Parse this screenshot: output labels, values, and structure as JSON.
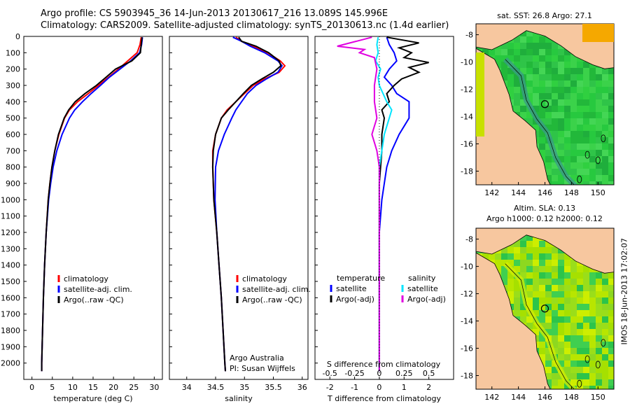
{
  "header": {
    "line1": "Argo profile: CS 5903945_36 14-Jun-2013 20130617_216 13.089S 145.996E",
    "line2": "Climatology: CARS2009. Satellite-adjusted climatology: synTS_20130613.nc (1.4d earlier)"
  },
  "side_label": "IMOS 18-Jun-2013 17:02:07",
  "colors": {
    "climatology": "#ff0000",
    "satellite": "#0000ff",
    "argo": "#000000",
    "sal_satellite": "#00e5ff",
    "sal_argo": "#e000e0",
    "land": "#f7c79f",
    "ocean_green": "#2ecc40"
  },
  "chart_data": [
    {
      "type": "line",
      "name": "temperature-profile",
      "xlabel": "temperature (deg C)",
      "ylabel": "",
      "xlim": [
        -2,
        32
      ],
      "ylim": [
        2100,
        0
      ],
      "xticks": [
        0,
        5,
        10,
        15,
        20,
        25,
        30
      ],
      "yticks": [
        0,
        100,
        200,
        300,
        400,
        500,
        600,
        700,
        800,
        900,
        1000,
        1100,
        1200,
        1300,
        1400,
        1500,
        1600,
        1700,
        1800,
        1900,
        2000
      ],
      "legend": [
        "climatology",
        "satellite-adj. clim.",
        "Argo(..raw -QC)"
      ],
      "series": [
        {
          "name": "climatology",
          "color": "#ff0000",
          "depth": [
            5,
            50,
            100,
            150,
            200,
            250,
            300,
            350,
            400,
            450,
            500,
            600,
            700,
            800,
            900,
            1000,
            1200,
            1400,
            1600,
            1800,
            2000,
            2050
          ],
          "values": [
            26.8,
            26.5,
            25.8,
            23.5,
            21.2,
            18.8,
            16.3,
            13.8,
            11.2,
            9.2,
            8.0,
            6.6,
            5.6,
            4.9,
            4.4,
            4.0,
            3.5,
            3.1,
            2.8,
            2.6,
            2.4,
            2.4
          ]
        },
        {
          "name": "satellite-adj. clim.",
          "color": "#0000ff",
          "depth": [
            5,
            50,
            100,
            150,
            200,
            250,
            300,
            350,
            400,
            450,
            500,
            600,
            700,
            800,
            900,
            1000,
            1200,
            1400,
            1600,
            1800,
            2000,
            2050
          ],
          "values": [
            27.1,
            26.9,
            26.4,
            24.2,
            21.6,
            19.0,
            16.8,
            14.5,
            12.4,
            10.5,
            9.2,
            7.4,
            6.1,
            5.2,
            4.6,
            4.1,
            3.5,
            3.1,
            2.8,
            2.6,
            2.4,
            2.4
          ]
        },
        {
          "name": "Argo(..raw -QC)",
          "color": "#000000",
          "depth": [
            5,
            50,
            100,
            150,
            200,
            250,
            300,
            350,
            400,
            450,
            500,
            600,
            700,
            800,
            900,
            1000,
            1200,
            1400,
            1600,
            1800,
            2000,
            2050
          ],
          "values": [
            27.0,
            26.8,
            26.6,
            24.5,
            20.5,
            18.2,
            15.8,
            13.0,
            10.6,
            9.0,
            7.9,
            6.5,
            5.6,
            4.9,
            4.4,
            4.0,
            3.5,
            3.1,
            2.8,
            2.6,
            2.4,
            2.4
          ]
        }
      ]
    },
    {
      "type": "line",
      "name": "salinity-profile",
      "xlabel": "salinity",
      "xlim": [
        33.7,
        36.1
      ],
      "ylim": [
        2100,
        0
      ],
      "xticks": [
        34,
        34.5,
        35,
        35.5,
        36
      ],
      "legend": [
        "climatology",
        "satellite-adj. clim.",
        "Argo(..raw -QC)"
      ],
      "annotation": [
        "Argo Australia",
        "PI: Susan Wijffels"
      ],
      "series": [
        {
          "name": "climatology",
          "color": "#ff0000",
          "depth": [
            5,
            30,
            60,
            100,
            150,
            180,
            220,
            260,
            300,
            350,
            400,
            450,
            500,
            600,
            700,
            800,
            1000,
            1200,
            1400,
            1600,
            1800,
            2000,
            2050
          ],
          "values": [
            34.85,
            34.95,
            35.15,
            35.4,
            35.62,
            35.7,
            35.6,
            35.35,
            35.15,
            35.0,
            34.85,
            34.7,
            34.6,
            34.5,
            34.45,
            34.45,
            34.47,
            34.52,
            34.56,
            34.6,
            34.63,
            34.66,
            34.67
          ]
        },
        {
          "name": "satellite-adj. clim.",
          "color": "#0000ff",
          "depth": [
            5,
            30,
            60,
            100,
            150,
            180,
            220,
            260,
            300,
            350,
            400,
            450,
            500,
            600,
            700,
            800,
            1000,
            1200,
            1400,
            1600,
            1800,
            2000,
            2050
          ],
          "values": [
            34.8,
            34.95,
            35.1,
            35.35,
            35.58,
            35.65,
            35.58,
            35.38,
            35.2,
            35.05,
            34.95,
            34.85,
            34.78,
            34.65,
            34.55,
            34.5,
            34.49,
            34.52,
            34.56,
            34.6,
            34.63,
            34.66,
            34.67
          ]
        },
        {
          "name": "Argo(..raw -QC)",
          "color": "#000000",
          "depth": [
            5,
            30,
            60,
            100,
            150,
            180,
            220,
            260,
            300,
            350,
            400,
            450,
            500,
            600,
            700,
            800,
            1000,
            1200,
            1400,
            1600,
            1800,
            2000,
            2050
          ],
          "values": [
            34.9,
            34.95,
            35.2,
            35.42,
            35.6,
            35.63,
            35.5,
            35.3,
            35.12,
            34.98,
            34.85,
            34.72,
            34.6,
            34.5,
            34.46,
            34.45,
            34.47,
            34.52,
            34.56,
            34.6,
            34.63,
            34.66,
            34.67
          ]
        }
      ]
    },
    {
      "type": "line",
      "name": "difference-profile",
      "xlabel": "T difference from climatology",
      "xlabel_top": "S difference from climatology",
      "xlim": [
        -2.6,
        3.0
      ],
      "ylim": [
        2100,
        0
      ],
      "xticks": [
        -2,
        -1,
        0,
        1,
        2
      ],
      "sticks_labels": [
        "-0.5",
        "-0.25",
        "0",
        "0.25",
        "0.5"
      ],
      "legend_headers": [
        "temperature",
        "salinity"
      ],
      "legend": [
        "satellite",
        "Argo(-adj)",
        "satellite",
        "Argo(-adj)"
      ],
      "series": [
        {
          "name": "T satellite",
          "color": "#0000ff",
          "depth": [
            5,
            50,
            100,
            150,
            200,
            250,
            300,
            350,
            400,
            500,
            600,
            700,
            800,
            900,
            1000,
            1100,
            1200,
            1400,
            1600,
            1800,
            2000,
            2050
          ],
          "values": [
            0.3,
            0.4,
            0.6,
            0.7,
            0.4,
            0.2,
            0.5,
            0.7,
            1.2,
            1.2,
            0.8,
            0.5,
            0.3,
            0.2,
            0.1,
            0.05,
            0.0,
            0.0,
            0.0,
            0.0,
            0.0,
            0.0
          ]
        },
        {
          "name": "T Argo(-adj)",
          "color": "#000000",
          "depth": [
            5,
            40,
            70,
            100,
            130,
            160,
            190,
            220,
            260,
            300,
            350,
            400,
            450,
            500,
            600,
            700,
            800,
            900,
            1000,
            1200,
            1400,
            1600,
            1800,
            2000,
            2050
          ],
          "values": [
            0.3,
            1.6,
            0.8,
            1.3,
            1.0,
            2.0,
            1.2,
            1.6,
            0.9,
            0.6,
            0.3,
            0.4,
            0.1,
            0.2,
            0.1,
            0.1,
            0.05,
            0.0,
            0.0,
            0.0,
            0.0,
            0.0,
            0.0,
            0.0,
            0.0
          ]
        },
        {
          "name": "S satellite",
          "color": "#00e5ff",
          "depth": [
            5,
            50,
            100,
            150,
            200,
            250,
            300,
            400,
            450,
            500,
            600,
            700,
            800,
            1000,
            1200,
            1400,
            1600,
            1800,
            2000,
            2050
          ],
          "values": [
            -0.05,
            -0.1,
            -0.05,
            -0.15,
            0.05,
            -0.05,
            0.0,
            0.3,
            0.5,
            0.4,
            0.2,
            0.1,
            0.0,
            0.0,
            0.0,
            0.0,
            0.0,
            0.0,
            0.0,
            0.0
          ]
        },
        {
          "name": "S Argo(-adj)",
          "color": "#e000e0",
          "depth": [
            5,
            60,
            80,
            100,
            130,
            200,
            300,
            400,
            500,
            600,
            650,
            700,
            800,
            1000,
            1200,
            1400,
            1600,
            1800,
            2000,
            2050
          ],
          "values": [
            -0.3,
            -1.7,
            -0.6,
            -0.8,
            -0.2,
            -0.1,
            -0.2,
            -0.2,
            -0.1,
            -0.3,
            -0.2,
            -0.1,
            0.0,
            0.0,
            0.0,
            0.0,
            0.0,
            0.0,
            0.0,
            0.0
          ]
        }
      ]
    },
    {
      "type": "heatmap",
      "name": "sst-map",
      "title": "sat. SST: 26.8  Argo: 27.1",
      "xlim": [
        140.8,
        151.2
      ],
      "ylim": [
        -19,
        -7.2
      ],
      "xticks": [
        142,
        144,
        146,
        148,
        150
      ],
      "yticks": [
        -8,
        -10,
        -12,
        -14,
        -16,
        -18
      ],
      "argo_position": [
        145.996,
        -13.089
      ]
    },
    {
      "type": "heatmap",
      "name": "sla-map",
      "title": [
        "Altim. SLA: 0.13",
        "Argo h1000: 0.12  h2000: 0.12"
      ],
      "xlim": [
        140.8,
        151.2
      ],
      "ylim": [
        -19,
        -7.2
      ],
      "xticks": [
        142,
        144,
        146,
        148,
        150
      ],
      "yticks": [
        -8,
        -10,
        -12,
        -14,
        -16,
        -18
      ],
      "argo_position": [
        145.996,
        -13.089
      ]
    }
  ]
}
